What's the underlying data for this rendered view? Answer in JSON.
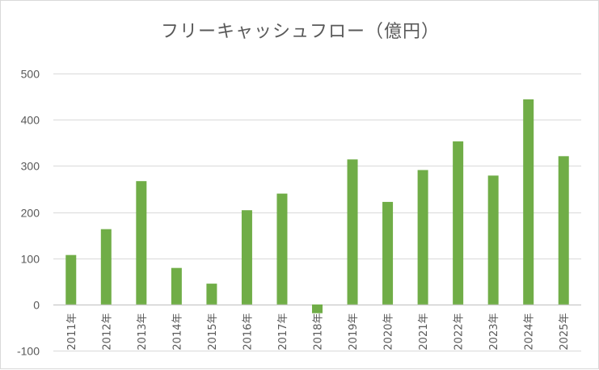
{
  "chart_data": {
    "type": "bar",
    "title": "フリーキャッシュフロー（億円）",
    "xlabel": "",
    "ylabel": "",
    "categories": [
      "2011年",
      "2012年",
      "2013年",
      "2014年",
      "2015年",
      "2016年",
      "2017年",
      "2018年",
      "2019年",
      "2020年",
      "2021年",
      "2022年",
      "2023年",
      "2024年",
      "2025年"
    ],
    "values": [
      107,
      163,
      267,
      79,
      45,
      204,
      240,
      -19,
      314,
      222,
      291,
      353,
      279,
      444,
      321
    ],
    "ylim": [
      -100,
      500
    ],
    "yticks": [
      "-100",
      "0",
      "100",
      "200",
      "300",
      "400",
      "500"
    ],
    "grid": true,
    "legend": "none",
    "colors": {
      "bar": "#70ad47",
      "grid": "#d9d9d9",
      "axis": "#bfbfbf",
      "text": "#595959"
    }
  }
}
